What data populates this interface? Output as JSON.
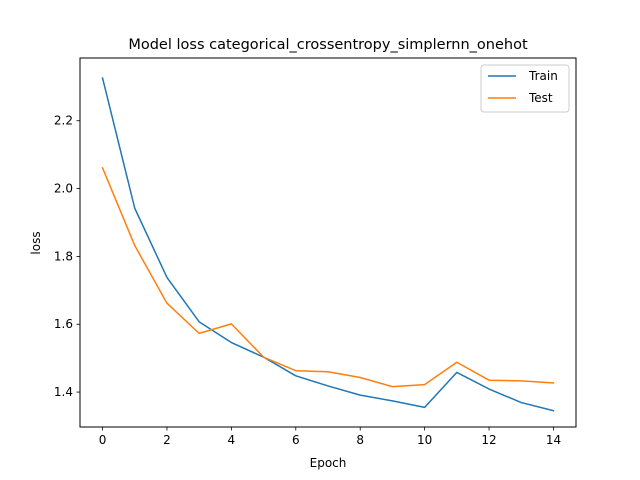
{
  "chart_data": {
    "type": "line",
    "title": "Model loss categorical_crossentropy_simplernn_onehot",
    "xlabel": "Epoch",
    "ylabel": "loss",
    "x": [
      0,
      1,
      2,
      3,
      4,
      5,
      6,
      7,
      8,
      9,
      10,
      11,
      12,
      13,
      14
    ],
    "xlim": [
      -0.7,
      14.7
    ],
    "ylim": [
      1.297,
      2.385
    ],
    "xticks": [
      0,
      2,
      4,
      6,
      8,
      10,
      12,
      14
    ],
    "yticks": [
      1.4,
      1.6,
      1.8,
      2.0,
      2.2
    ],
    "ytick_labels": [
      "1.4",
      "1.6",
      "1.8",
      "2.0",
      "2.2"
    ],
    "grid": false,
    "legend_position": "top-right",
    "series": [
      {
        "name": "Train",
        "color": "#1f77b4",
        "values": [
          2.326,
          1.942,
          1.738,
          1.607,
          1.546,
          1.503,
          1.448,
          1.418,
          1.391,
          1.374,
          1.355,
          1.458,
          1.409,
          1.369,
          1.345
        ]
      },
      {
        "name": "Test",
        "color": "#ff7f0e",
        "values": [
          2.061,
          1.832,
          1.662,
          1.573,
          1.601,
          1.503,
          1.463,
          1.46,
          1.443,
          1.416,
          1.422,
          1.488,
          1.435,
          1.433,
          1.427
        ]
      }
    ]
  }
}
